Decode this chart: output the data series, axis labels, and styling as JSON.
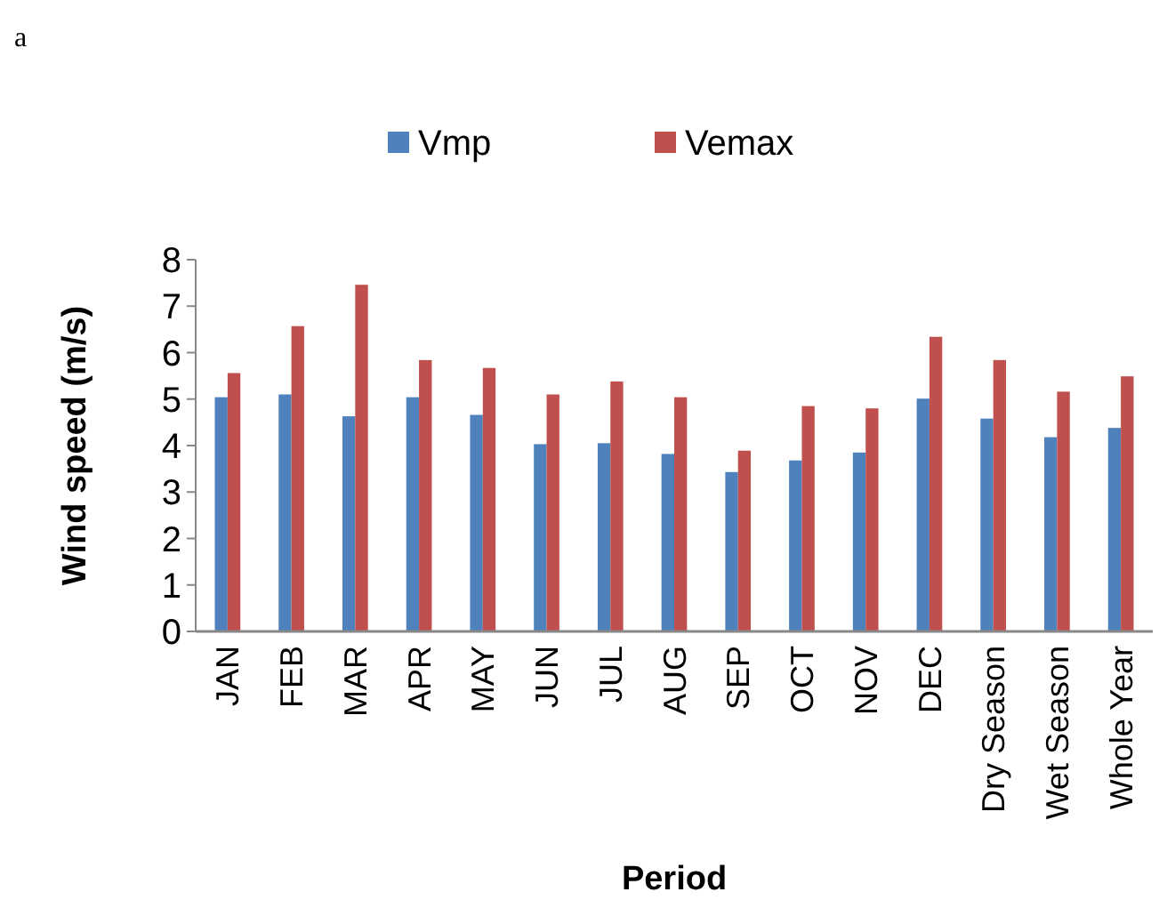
{
  "chart_data": {
    "type": "bar",
    "xlabel": "Period",
    "ylabel": "Wind speed (m/s)",
    "categories": [
      "JAN",
      "FEB",
      "MAR",
      "APR",
      "MAY",
      "JUN",
      "JUL",
      "AUG",
      "SEP",
      "OCT",
      "NOV",
      "DEC",
      "Dry Season",
      "Wet Season",
      "Whole Year"
    ],
    "series": [
      {
        "name": "Vmp",
        "color": "#4f81bd",
        "values": [
          5.04,
          5.1,
          4.63,
          5.04,
          4.66,
          4.03,
          4.05,
          3.82,
          3.43,
          3.68,
          3.85,
          5.01,
          4.58,
          4.18,
          4.38
        ]
      },
      {
        "name": "Vemax",
        "color": "#c0504d",
        "values": [
          5.56,
          6.57,
          7.46,
          5.84,
          5.67,
          5.1,
          5.38,
          5.04,
          3.89,
          4.85,
          4.8,
          6.34,
          5.84,
          5.16,
          5.49
        ]
      }
    ],
    "ylim": [
      0,
      8
    ],
    "yticks": [
      0,
      1,
      2,
      3,
      4,
      5,
      6,
      7,
      8
    ],
    "grid": false,
    "legend": "top",
    "annotations": [
      "a"
    ]
  }
}
